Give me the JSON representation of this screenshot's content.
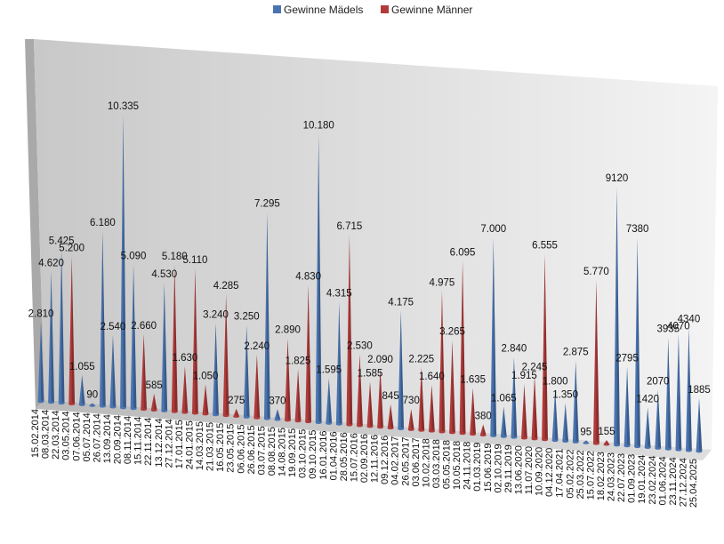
{
  "chart_data": {
    "type": "bar",
    "style": "3d-cones",
    "grid": false,
    "legend_position": "top",
    "colors": {
      "Gewinne Mädels": "#4a74b0",
      "Gewinne Männer": "#b13a3a"
    },
    "series": [
      {
        "name": "Gewinne Mädels"
      },
      {
        "name": "Gewinne Männer"
      }
    ],
    "points": [
      {
        "date": "15.02.2014",
        "series": "Gewinne Mädels",
        "label": "2.810",
        "value": 2810
      },
      {
        "date": "08.03.2014",
        "series": "Gewinne Mädels",
        "label": "4.620",
        "value": 4620
      },
      {
        "date": "22.03.2014",
        "series": "Gewinne Mädels",
        "label": "5.425",
        "value": 5425
      },
      {
        "date": "03.05.2014",
        "series": "Gewinne Männer",
        "label": "5.200",
        "value": 5200
      },
      {
        "date": "07.06.2014",
        "series": "Gewinne Mädels",
        "label": "1.055",
        "value": 1055
      },
      {
        "date": "05.07.2014",
        "series": "Gewinne Mädels",
        "label": "90",
        "value": 90
      },
      {
        "date": "26.07.2014",
        "series": "Gewinne Mädels",
        "label": "6.180",
        "value": 6180
      },
      {
        "date": "13.09.2014",
        "series": "Gewinne Mädels",
        "label": "2.540",
        "value": 2540
      },
      {
        "date": "20.09.2014",
        "series": "Gewinne Mädels",
        "label": "10.335",
        "value": 10335
      },
      {
        "date": "08.11.2014",
        "series": "Gewinne Mädels",
        "label": "5.090",
        "value": 5090
      },
      {
        "date": "15.11.2014",
        "series": "Gewinne Männer",
        "label": "2.660",
        "value": 2660
      },
      {
        "date": "22.11.2014",
        "series": "Gewinne Männer",
        "label": "585",
        "value": 585
      },
      {
        "date": "13.12.2014",
        "series": "Gewinne Mädels",
        "label": "4.530",
        "value": 4530
      },
      {
        "date": "27.12.2014",
        "series": "Gewinne Männer",
        "label": "5.180",
        "value": 5180
      },
      {
        "date": "17.01.2015",
        "series": "Gewinne Männer",
        "label": "1.630",
        "value": 1630
      },
      {
        "date": "24.01.2015",
        "series": "Gewinne Männer",
        "label": "5.110",
        "value": 5110
      },
      {
        "date": "14.03.2015",
        "series": "Gewinne Männer",
        "label": "1.050",
        "value": 1050
      },
      {
        "date": "21.03.2015",
        "series": "Gewinne Mädels",
        "label": "3.240",
        "value": 3240
      },
      {
        "date": "16.05.2015",
        "series": "Gewinne Männer",
        "label": "4.285",
        "value": 4285
      },
      {
        "date": "23.05.2015",
        "series": "Gewinne Männer",
        "label": "275",
        "value": 275
      },
      {
        "date": "06.06.2015",
        "series": "Gewinne Mädels",
        "label": "3.250",
        "value": 3250
      },
      {
        "date": "26.06.2015",
        "series": "Gewinne Männer",
        "label": "2.240",
        "value": 2240
      },
      {
        "date": "03.07.2015",
        "series": "Gewinne Mädels",
        "label": "7.295",
        "value": 7295
      },
      {
        "date": "08.08.2015",
        "series": "Gewinne Mädels",
        "label": "370",
        "value": 370
      },
      {
        "date": "14.08.2015",
        "series": "Gewinne Männer",
        "label": "2.890",
        "value": 2890
      },
      {
        "date": "19.09.2015",
        "series": "Gewinne Männer",
        "label": "1.825",
        "value": 1825
      },
      {
        "date": "03.10.2015",
        "series": "Gewinne Männer",
        "label": "4.830",
        "value": 4830
      },
      {
        "date": "09.10.2015",
        "series": "Gewinne Mädels",
        "label": "10.180",
        "value": 10180
      },
      {
        "date": "16.01.2016",
        "series": "Gewinne Mädels",
        "label": "1.595",
        "value": 1595
      },
      {
        "date": "01.04.2016",
        "series": "Gewinne Mädels",
        "label": "4.315",
        "value": 4315
      },
      {
        "date": "28.05.2016",
        "series": "Gewinne Männer",
        "label": "6.715",
        "value": 6715
      },
      {
        "date": "15.07.2016",
        "series": "Gewinne Männer",
        "label": "2.530",
        "value": 2530
      },
      {
        "date": "02.09.2016",
        "series": "Gewinne Männer",
        "label": "1.585",
        "value": 1585
      },
      {
        "date": "12.11.2016",
        "series": "Gewinne Männer",
        "label": "2.090",
        "value": 2090
      },
      {
        "date": "09.12.2016",
        "series": "Gewinne Männer",
        "label": "845",
        "value": 845
      },
      {
        "date": "04.02.2017",
        "series": "Gewinne Mädels",
        "label": "4.175",
        "value": 4175
      },
      {
        "date": "26.05.2017",
        "series": "Gewinne Männer",
        "label": "730",
        "value": 730
      },
      {
        "date": "03.06.2017",
        "series": "Gewinne Männer",
        "label": "2.225",
        "value": 2225
      },
      {
        "date": "10.02.2018",
        "series": "Gewinne Männer",
        "label": "1.640",
        "value": 1640
      },
      {
        "date": "03.03.2018",
        "series": "Gewinne Männer",
        "label": "4.975",
        "value": 4975
      },
      {
        "date": "05.05.2018",
        "series": "Gewinne Männer",
        "label": "3.265",
        "value": 3265
      },
      {
        "date": "10.05.2018",
        "series": "Gewinne Männer",
        "label": "6.095",
        "value": 6095
      },
      {
        "date": "24.11.2018",
        "series": "Gewinne Männer",
        "label": "1.635",
        "value": 1635
      },
      {
        "date": "01.03.2019",
        "series": "Gewinne Männer",
        "label": "380",
        "value": 380
      },
      {
        "date": "15.06.2019",
        "series": "Gewinne Mädels",
        "label": "7.000",
        "value": 7000
      },
      {
        "date": "02.10.2019",
        "series": "Gewinne Mädels",
        "label": "1.065",
        "value": 1065
      },
      {
        "date": "29.11.2019",
        "series": "Gewinne Mädels",
        "label": "2.840",
        "value": 2840
      },
      {
        "date": "13.06.2020",
        "series": "Gewinne Männer",
        "label": "1.915",
        "value": 1915
      },
      {
        "date": "11.07.2020",
        "series": "Gewinne Männer",
        "label": "2.245",
        "value": 2245
      },
      {
        "date": "10.09.2020",
        "series": "Gewinne Männer",
        "label": "6.555",
        "value": 6555
      },
      {
        "date": "04.12.2020",
        "series": "Gewinne Mädels",
        "label": "1.800",
        "value": 1800
      },
      {
        "date": "17.04.2021",
        "series": "Gewinne Mädels",
        "label": "1.350",
        "value": 1350
      },
      {
        "date": "05.02.2022",
        "series": "Gewinne Mädels",
        "label": "2.875",
        "value": 2875
      },
      {
        "date": "25.03.2022",
        "series": "Gewinne Mädels",
        "label": "95",
        "value": 95
      },
      {
        "date": "15.07.2022",
        "series": "Gewinne Männer",
        "label": "5.770",
        "value": 5770
      },
      {
        "date": "18.02.2023",
        "series": "Gewinne Männer",
        "label": "155",
        "value": 155
      },
      {
        "date": "24.03.2023",
        "series": "Gewinne Mädels",
        "label": "9120",
        "value": 9120
      },
      {
        "date": "22.07.2023",
        "series": "Gewinne Mädels",
        "label": "2795",
        "value": 2795
      },
      {
        "date": "01.09.2023",
        "series": "Gewinne Mädels",
        "label": "7380",
        "value": 7380
      },
      {
        "date": "19.01.2024",
        "series": "Gewinne Mädels",
        "label": "1420",
        "value": 1420
      },
      {
        "date": "23.02.2024",
        "series": "Gewinne Mädels",
        "label": "2070",
        "value": 2070
      },
      {
        "date": "01.06.2024",
        "series": "Gewinne Mädels",
        "label": "3935",
        "value": 3935
      },
      {
        "date": "23.11.2024",
        "series": "Gewinne Mädels",
        "label": "4070",
        "value": 4070
      },
      {
        "date": "27.12.2024",
        "series": "Gewinne Mädels",
        "label": "4340",
        "value": 4340
      },
      {
        "date": "25.04.2025",
        "series": "Gewinne Mädels",
        "label": "1885",
        "value": 1885
      }
    ]
  }
}
